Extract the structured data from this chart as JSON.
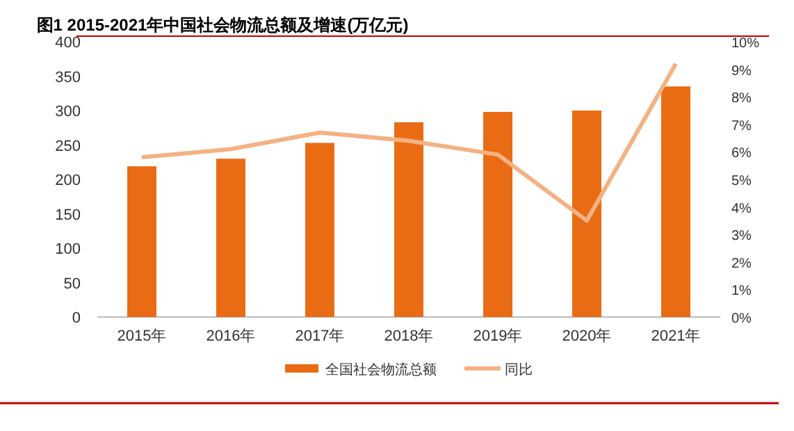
{
  "chart_data": {
    "type": "bar",
    "title": "图1 2015-2021年中国社会物流总额及增速(万亿元)",
    "categories": [
      "2015年",
      "2016年",
      "2017年",
      "2018年",
      "2019年",
      "2020年",
      "2021年"
    ],
    "series": [
      {
        "name": "全国社会物流总额",
        "color": "#e96c14",
        "values": [
          219,
          230,
          253,
          283,
          298,
          300,
          335
        ]
      },
      {
        "name": "同比",
        "type": "line",
        "axis": "y2",
        "color": "#f4b183",
        "values": [
          5.8,
          6.1,
          6.7,
          6.4,
          5.9,
          3.5,
          9.2
        ]
      }
    ],
    "ylim": [
      0,
      400
    ],
    "yticks": [
      0,
      50,
      100,
      150,
      200,
      250,
      300,
      350,
      400
    ],
    "y2lim": [
      0,
      10
    ],
    "y2ticks": [
      {
        "value": 0,
        "label": "0%"
      },
      {
        "value": 1,
        "label": "1%"
      },
      {
        "value": 2,
        "label": "2%"
      },
      {
        "value": 3,
        "label": "3%"
      },
      {
        "value": 4,
        "label": "4%"
      },
      {
        "value": 5,
        "label": "5%"
      },
      {
        "value": 6,
        "label": "6%"
      },
      {
        "value": 7,
        "label": "7%"
      },
      {
        "value": 8,
        "label": "8%"
      },
      {
        "value": 9,
        "label": "9%"
      },
      {
        "value": 10,
        "label": "10%"
      }
    ],
    "legend": "bottom",
    "marker": "none"
  }
}
